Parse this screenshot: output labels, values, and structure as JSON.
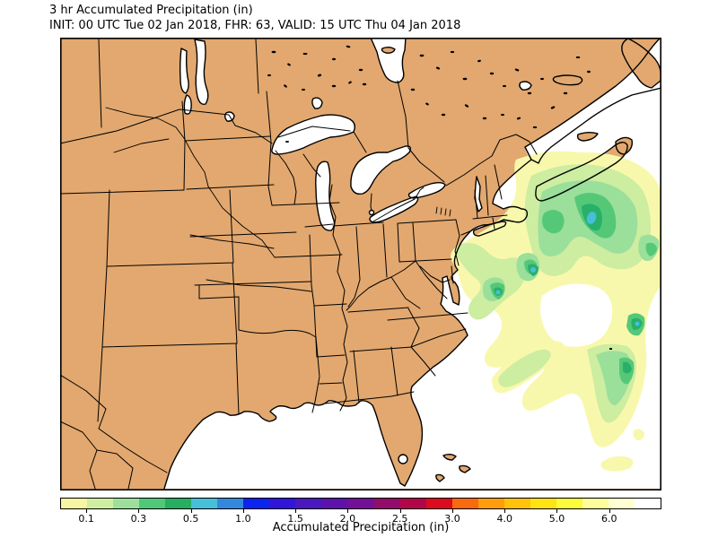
{
  "header": {
    "line1": "3 hr Accumulated Precipitation (in)",
    "line2": "INIT: 00 UTC Tue 02 Jan 2018, FHR: 63, VALID: 15 UTC Thu 04 Jan 2018"
  },
  "colorbar": {
    "caption": "Accumulated Precipitation (in)",
    "tick_labels": [
      "0.1",
      "0.3",
      "0.5",
      "1.0",
      "1.5",
      "2.0",
      "2.5",
      "3.0",
      "4.0",
      "5.0",
      "6.0"
    ],
    "segment_colors": [
      "#F7F6A4",
      "#CEEFA2",
      "#9CE09C",
      "#50C878",
      "#27AE60",
      "#48BFD8",
      "#3388DE",
      "#0B24F0",
      "#3315D9",
      "#4A18BF",
      "#5E12AC",
      "#740F97",
      "#930B6B",
      "#B30649",
      "#DD0A20",
      "#F96A0F",
      "#FF9E0A",
      "#FFC30A",
      "#FFE411",
      "#FCFB3C",
      "#FDFD9E",
      "#FFFFD4",
      "#FFFFFF"
    ],
    "outline_color": "#000000"
  },
  "map": {
    "projection_note_visible_features": [
      "Great Lakes",
      "Atlantic coast",
      "Gulf of Mexico",
      "Florida",
      "James Bay",
      "St. Lawrence",
      "Nova Scotia",
      "Newfoundland"
    ],
    "precip_levels": [
      {
        "range_in": "0.01-0.1",
        "color": "#F8F8AC"
      },
      {
        "range_in": "0.1-0.2",
        "color": "#CDEDA1"
      },
      {
        "range_in": "0.2-0.3",
        "color": "#9ADF9A"
      },
      {
        "range_in": "0.3-0.4",
        "color": "#55C878"
      },
      {
        "range_in": "0.4-0.5",
        "color": "#28B06B"
      },
      {
        "range_in": "0.5-0.75",
        "color": "#48BFD8"
      }
    ]
  },
  "colors": {
    "land": "#E2A86F",
    "ocean": "#FFFFFF",
    "line": "#000000",
    "p1": "#F8F8AC",
    "p2": "#CDEDA1",
    "p3": "#9ADF9A",
    "p4": "#55C878",
    "p5": "#28B06B",
    "p6": "#48BFD8"
  }
}
